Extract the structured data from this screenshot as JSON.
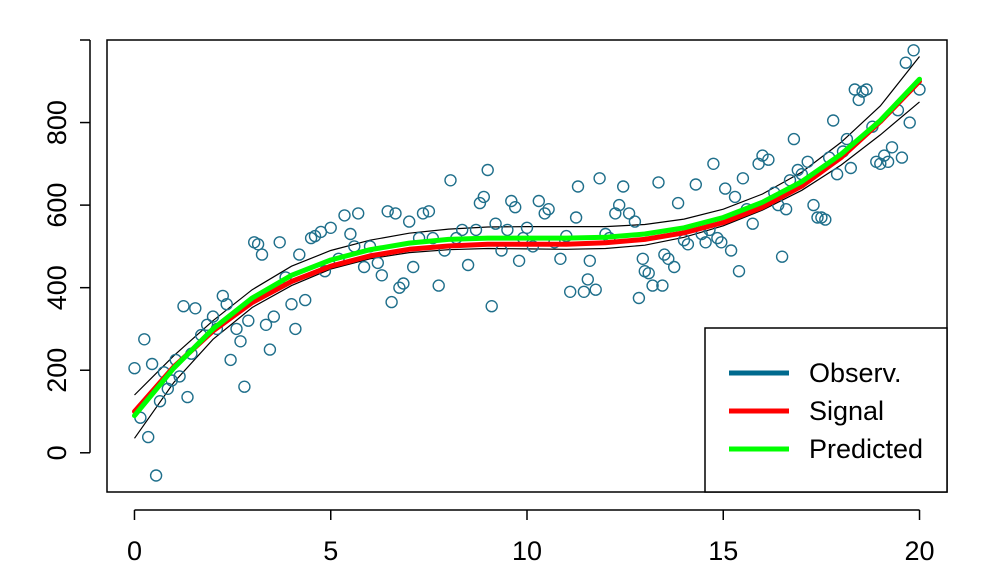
{
  "chart_data": {
    "type": "scatter",
    "title": "",
    "xlabel": "",
    "ylabel": "",
    "xlim": [
      -0.7,
      20.7
    ],
    "ylim": [
      -95,
      1000
    ],
    "x_ticks": [
      0,
      5,
      10,
      15,
      20
    ],
    "y_ticks": [
      0,
      200,
      400,
      600,
      800
    ],
    "x_tick_labels": [
      "0",
      "5",
      "10",
      "15",
      "20"
    ],
    "y_tick_labels": [
      "0",
      "200",
      "400",
      "600",
      "800"
    ],
    "grid": false,
    "legend": {
      "placement": "bottom-right",
      "entries": [
        {
          "label": "Observ.",
          "color": "#006a8e"
        },
        {
          "label": "Signal",
          "color": "#ff0000"
        },
        {
          "label": "Predicted",
          "color": "#00ff00"
        }
      ]
    },
    "observations": {
      "name": "Observ.",
      "color": "#1f6f8b",
      "points": [
        [
          0.0,
          205
        ],
        [
          0.15,
          85
        ],
        [
          0.25,
          275
        ],
        [
          0.35,
          38
        ],
        [
          0.45,
          215
        ],
        [
          0.55,
          -55
        ],
        [
          0.65,
          125
        ],
        [
          0.75,
          195
        ],
        [
          0.85,
          155
        ],
        [
          0.95,
          175
        ],
        [
          1.05,
          225
        ],
        [
          1.15,
          185
        ],
        [
          1.25,
          355
        ],
        [
          1.35,
          135
        ],
        [
          1.45,
          240
        ],
        [
          1.55,
          350
        ],
        [
          1.7,
          285
        ],
        [
          1.85,
          310
        ],
        [
          2.0,
          330
        ],
        [
          2.1,
          300
        ],
        [
          2.25,
          380
        ],
        [
          2.35,
          360
        ],
        [
          2.45,
          225
        ],
        [
          2.6,
          300
        ],
        [
          2.7,
          270
        ],
        [
          2.8,
          160
        ],
        [
          2.9,
          320
        ],
        [
          3.05,
          510
        ],
        [
          3.15,
          505
        ],
        [
          3.25,
          480
        ],
        [
          3.35,
          310
        ],
        [
          3.45,
          250
        ],
        [
          3.55,
          330
        ],
        [
          3.7,
          510
        ],
        [
          3.85,
          425
        ],
        [
          4.0,
          360
        ],
        [
          4.1,
          300
        ],
        [
          4.2,
          480
        ],
        [
          4.35,
          370
        ],
        [
          4.5,
          520
        ],
        [
          4.6,
          525
        ],
        [
          4.75,
          535
        ],
        [
          4.85,
          440
        ],
        [
          5.0,
          545
        ],
        [
          5.2,
          470
        ],
        [
          5.35,
          575
        ],
        [
          5.5,
          530
        ],
        [
          5.6,
          500
        ],
        [
          5.7,
          580
        ],
        [
          5.85,
          450
        ],
        [
          6.0,
          500
        ],
        [
          6.2,
          460
        ],
        [
          6.3,
          430
        ],
        [
          6.45,
          585
        ],
        [
          6.55,
          365
        ],
        [
          6.65,
          580
        ],
        [
          6.75,
          400
        ],
        [
          6.85,
          410
        ],
        [
          7.0,
          560
        ],
        [
          7.1,
          450
        ],
        [
          7.25,
          520
        ],
        [
          7.35,
          580
        ],
        [
          7.5,
          585
        ],
        [
          7.6,
          520
        ],
        [
          7.75,
          405
        ],
        [
          7.9,
          490
        ],
        [
          8.05,
          660
        ],
        [
          8.2,
          520
        ],
        [
          8.35,
          540
        ],
        [
          8.5,
          455
        ],
        [
          8.7,
          540
        ],
        [
          8.8,
          605
        ],
        [
          8.9,
          620
        ],
        [
          9.0,
          685
        ],
        [
          9.1,
          355
        ],
        [
          9.2,
          555
        ],
        [
          9.35,
          490
        ],
        [
          9.5,
          540
        ],
        [
          9.6,
          610
        ],
        [
          9.7,
          595
        ],
        [
          9.8,
          465
        ],
        [
          9.9,
          520
        ],
        [
          10.0,
          545
        ],
        [
          10.15,
          500
        ],
        [
          10.3,
          610
        ],
        [
          10.45,
          580
        ],
        [
          10.55,
          590
        ],
        [
          10.7,
          510
        ],
        [
          10.85,
          470
        ],
        [
          11.0,
          525
        ],
        [
          11.1,
          390
        ],
        [
          11.25,
          570
        ],
        [
          11.3,
          645
        ],
        [
          11.45,
          390
        ],
        [
          11.55,
          420
        ],
        [
          11.6,
          465
        ],
        [
          11.75,
          395
        ],
        [
          11.85,
          665
        ],
        [
          12.0,
          530
        ],
        [
          12.1,
          520
        ],
        [
          12.25,
          580
        ],
        [
          12.35,
          600
        ],
        [
          12.45,
          645
        ],
        [
          12.6,
          580
        ],
        [
          12.75,
          560
        ],
        [
          12.85,
          375
        ],
        [
          12.95,
          470
        ],
        [
          13.0,
          440
        ],
        [
          13.1,
          435
        ],
        [
          13.2,
          405
        ],
        [
          13.35,
          655
        ],
        [
          13.45,
          405
        ],
        [
          13.5,
          480
        ],
        [
          13.6,
          470
        ],
        [
          13.75,
          450
        ],
        [
          13.85,
          605
        ],
        [
          14.0,
          515
        ],
        [
          14.1,
          505
        ],
        [
          14.3,
          650
        ],
        [
          14.45,
          530
        ],
        [
          14.55,
          510
        ],
        [
          14.65,
          540
        ],
        [
          14.75,
          700
        ],
        [
          14.85,
          520
        ],
        [
          14.95,
          510
        ],
        [
          15.05,
          640
        ],
        [
          15.2,
          490
        ],
        [
          15.3,
          620
        ],
        [
          15.4,
          440
        ],
        [
          15.5,
          665
        ],
        [
          15.6,
          590
        ],
        [
          15.75,
          555
        ],
        [
          15.9,
          700
        ],
        [
          16.0,
          720
        ],
        [
          16.15,
          710
        ],
        [
          16.3,
          630
        ],
        [
          16.4,
          600
        ],
        [
          16.5,
          475
        ],
        [
          16.6,
          590
        ],
        [
          16.7,
          660
        ],
        [
          16.8,
          760
        ],
        [
          16.9,
          685
        ],
        [
          17.0,
          675
        ],
        [
          17.15,
          705
        ],
        [
          17.3,
          600
        ],
        [
          17.4,
          570
        ],
        [
          17.5,
          570
        ],
        [
          17.6,
          565
        ],
        [
          17.7,
          715
        ],
        [
          17.8,
          805
        ],
        [
          17.9,
          675
        ],
        [
          18.05,
          730
        ],
        [
          18.15,
          760
        ],
        [
          18.25,
          690
        ],
        [
          18.35,
          880
        ],
        [
          18.45,
          855
        ],
        [
          18.55,
          875
        ],
        [
          18.65,
          880
        ],
        [
          18.8,
          790
        ],
        [
          18.9,
          705
        ],
        [
          19.0,
          700
        ],
        [
          19.1,
          720
        ],
        [
          19.2,
          705
        ],
        [
          19.3,
          740
        ],
        [
          19.45,
          830
        ],
        [
          19.55,
          715
        ],
        [
          19.65,
          945
        ],
        [
          19.75,
          800
        ],
        [
          19.85,
          975
        ],
        [
          20.0,
          880
        ]
      ]
    },
    "signal": {
      "name": "Signal",
      "color": "#ff0000",
      "points": [
        [
          0.0,
          100
        ],
        [
          1.0,
          208
        ],
        [
          2.0,
          295
        ],
        [
          3.0,
          364
        ],
        [
          4.0,
          415
        ],
        [
          5.0,
          452
        ],
        [
          6.0,
          477
        ],
        [
          7.0,
          493
        ],
        [
          8.0,
          501
        ],
        [
          9.0,
          505
        ],
        [
          10.0,
          505
        ],
        [
          11.0,
          505
        ],
        [
          12.0,
          509
        ],
        [
          13.0,
          517
        ],
        [
          14.0,
          533
        ],
        [
          15.0,
          558
        ],
        [
          16.0,
          595
        ],
        [
          17.0,
          646
        ],
        [
          18.0,
          715
        ],
        [
          19.0,
          802
        ],
        [
          20.0,
          900
        ]
      ]
    },
    "predicted": {
      "name": "Predicted",
      "color": "#00ff00",
      "points": [
        [
          0.0,
          90
        ],
        [
          1.0,
          205
        ],
        [
          2.0,
          300
        ],
        [
          3.0,
          375
        ],
        [
          4.0,
          430
        ],
        [
          5.0,
          467
        ],
        [
          6.0,
          492
        ],
        [
          7.0,
          508
        ],
        [
          8.0,
          517
        ],
        [
          9.0,
          520
        ],
        [
          10.0,
          520
        ],
        [
          11.0,
          520
        ],
        [
          12.0,
          522
        ],
        [
          13.0,
          530
        ],
        [
          14.0,
          545
        ],
        [
          15.0,
          570
        ],
        [
          16.0,
          607
        ],
        [
          17.0,
          657
        ],
        [
          18.0,
          723
        ],
        [
          19.0,
          805
        ],
        [
          20.0,
          905
        ]
      ]
    },
    "band_upper": {
      "color": "#000000",
      "points": [
        [
          0.0,
          140
        ],
        [
          1.0,
          235
        ],
        [
          2.0,
          320
        ],
        [
          3.0,
          395
        ],
        [
          4.0,
          452
        ],
        [
          5.0,
          490
        ],
        [
          6.0,
          515
        ],
        [
          7.0,
          532
        ],
        [
          8.0,
          542
        ],
        [
          9.0,
          547
        ],
        [
          10.0,
          548
        ],
        [
          11.0,
          548
        ],
        [
          12.0,
          548
        ],
        [
          13.0,
          553
        ],
        [
          14.0,
          566
        ],
        [
          15.0,
          590
        ],
        [
          16.0,
          627
        ],
        [
          17.0,
          680
        ],
        [
          18.0,
          752
        ],
        [
          19.0,
          840
        ],
        [
          20.0,
          960
        ]
      ]
    },
    "band_lower": {
      "color": "#000000",
      "points": [
        [
          0.0,
          35
        ],
        [
          1.0,
          170
        ],
        [
          2.0,
          275
        ],
        [
          3.0,
          352
        ],
        [
          4.0,
          405
        ],
        [
          5.0,
          445
        ],
        [
          6.0,
          470
        ],
        [
          7.0,
          485
        ],
        [
          8.0,
          492
        ],
        [
          9.0,
          495
        ],
        [
          10.0,
          494
        ],
        [
          11.0,
          493
        ],
        [
          12.0,
          495
        ],
        [
          13.0,
          503
        ],
        [
          14.0,
          522
        ],
        [
          15.0,
          550
        ],
        [
          16.0,
          588
        ],
        [
          17.0,
          636
        ],
        [
          18.0,
          697
        ],
        [
          19.0,
          770
        ],
        [
          20.0,
          850
        ]
      ]
    }
  }
}
